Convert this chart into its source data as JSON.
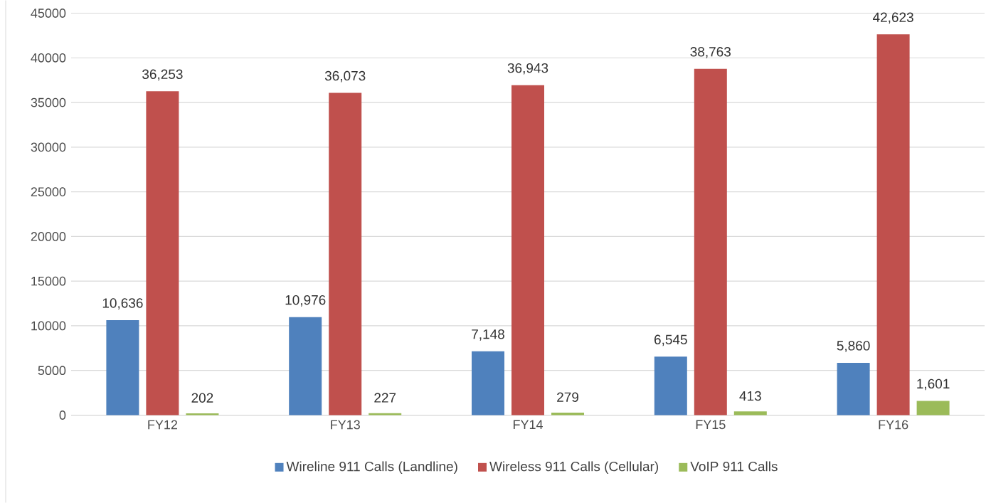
{
  "chart_data": {
    "type": "bar",
    "categories": [
      "FY12",
      "FY13",
      "FY14",
      "FY15",
      "FY16"
    ],
    "series": [
      {
        "name": "Wireline 911 Calls (Landline)",
        "color": "#4f81bd",
        "values": [
          10636,
          10976,
          7148,
          6545,
          5860
        ],
        "value_labels": [
          "10,636",
          "10,976",
          "7,148",
          "6,545",
          "5,860"
        ]
      },
      {
        "name": "Wireless 911 Calls (Cellular)",
        "color": "#c0504d",
        "values": [
          36253,
          36073,
          36943,
          38763,
          42623
        ],
        "value_labels": [
          "36,253",
          "36,073",
          "36,943",
          "38,763",
          "42,623"
        ]
      },
      {
        "name": "VoIP 911 Calls",
        "color": "#9bbb59",
        "values": [
          202,
          227,
          279,
          413,
          1601
        ],
        "value_labels": [
          "202",
          "227",
          "279",
          "413",
          "1,601"
        ]
      }
    ],
    "ylim": [
      0,
      45000
    ],
    "yticks": [
      0,
      5000,
      10000,
      15000,
      20000,
      25000,
      30000,
      35000,
      40000,
      45000
    ],
    "grid": "y",
    "legend": "bottom"
  }
}
